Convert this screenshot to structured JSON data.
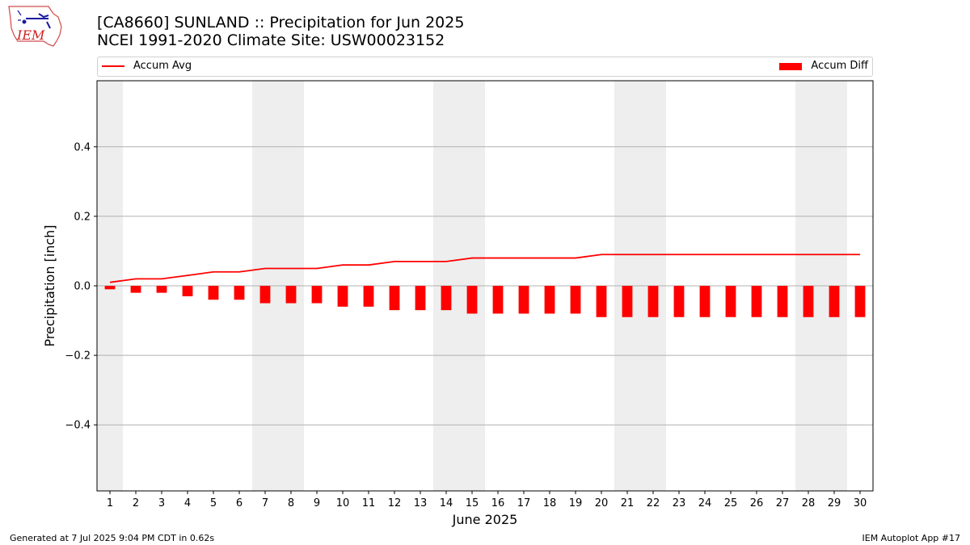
{
  "title_line1": "[CA8660] SUNLAND :: Precipitation for Jun 2025",
  "title_line2": "NCEI 1991-2020 Climate Site: USW00023152",
  "logo_text": "IEM",
  "footer_left": "Generated at 7 Jul 2025 9:04 PM CDT in 0.62s",
  "footer_right": "IEM Autoplot App #17",
  "colors": {
    "series": "#ff0000",
    "weekend_shade": "#eeeeee",
    "grid": "#b0b0b0"
  },
  "chart_data": {
    "type": "bar",
    "xlabel": "June 2025",
    "ylabel": "Precipitation [inch]",
    "x": [
      1,
      2,
      3,
      4,
      5,
      6,
      7,
      8,
      9,
      10,
      11,
      12,
      13,
      14,
      15,
      16,
      17,
      18,
      19,
      20,
      21,
      22,
      23,
      24,
      25,
      26,
      27,
      28,
      29,
      30
    ],
    "xlim": [
      0.5,
      30.5
    ],
    "ylim": [
      -0.59,
      0.59
    ],
    "yticks": [
      0.4,
      0.2,
      0.0,
      -0.2,
      -0.4
    ],
    "ytick_labels": [
      "0.4",
      "0.2",
      "0.0",
      "−0.2",
      "−0.4"
    ],
    "grid": true,
    "legend_placement": "top",
    "weekend_days": [
      1,
      7,
      8,
      14,
      15,
      21,
      22,
      28,
      29
    ],
    "series": [
      {
        "name": "Accum Avg",
        "type": "line",
        "values": [
          0.01,
          0.02,
          0.02,
          0.03,
          0.04,
          0.04,
          0.05,
          0.05,
          0.05,
          0.06,
          0.06,
          0.07,
          0.07,
          0.07,
          0.08,
          0.08,
          0.08,
          0.08,
          0.08,
          0.09,
          0.09,
          0.09,
          0.09,
          0.09,
          0.09,
          0.09,
          0.09,
          0.09,
          0.09,
          0.09
        ]
      },
      {
        "name": "Accum Diff",
        "type": "bar",
        "values": [
          -0.01,
          -0.02,
          -0.02,
          -0.03,
          -0.04,
          -0.04,
          -0.05,
          -0.05,
          -0.05,
          -0.06,
          -0.06,
          -0.07,
          -0.07,
          -0.07,
          -0.08,
          -0.08,
          -0.08,
          -0.08,
          -0.08,
          -0.09,
          -0.09,
          -0.09,
          -0.09,
          -0.09,
          -0.09,
          -0.09,
          -0.09,
          -0.09,
          -0.09,
          -0.09
        ]
      }
    ]
  }
}
